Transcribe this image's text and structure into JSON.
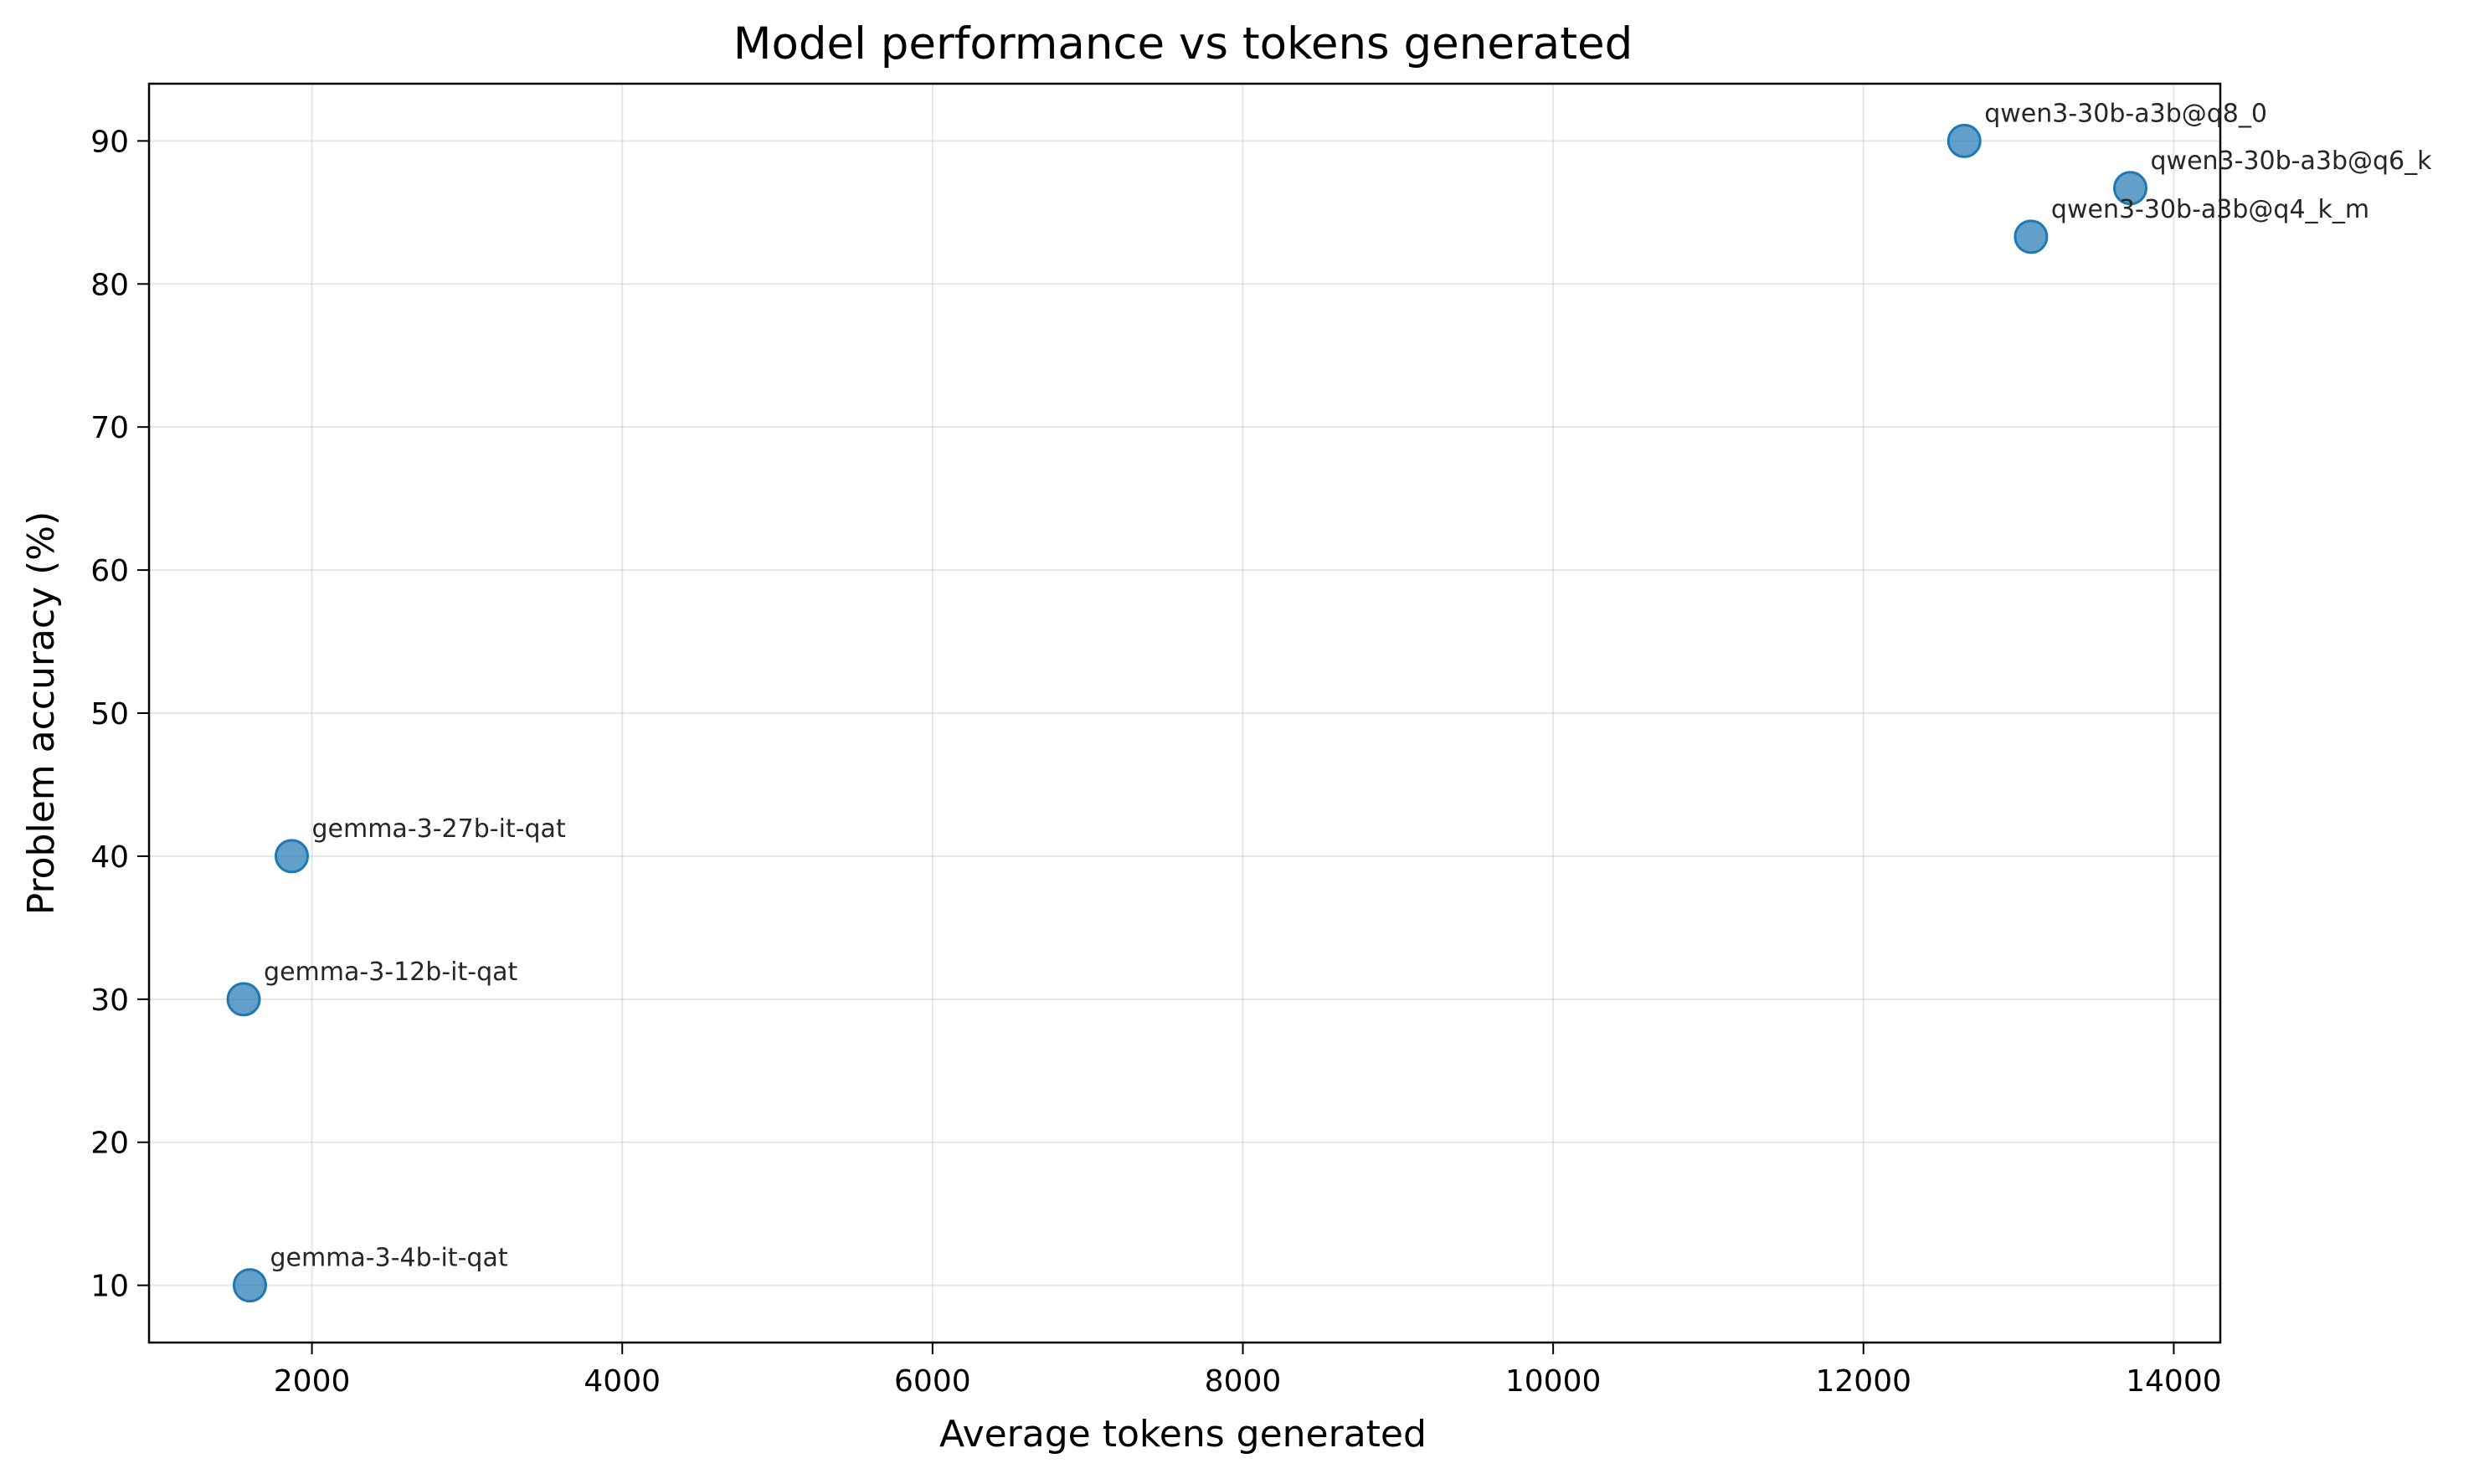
{
  "chart_data": {
    "type": "scatter",
    "title": "Model performance vs tokens generated",
    "xlabel": "Average tokens generated",
    "ylabel": "Problem accuracy (%)",
    "xlim": [
      950,
      14300
    ],
    "ylim": [
      6,
      94
    ],
    "xticks": [
      2000,
      4000,
      6000,
      8000,
      10000,
      12000,
      14000
    ],
    "yticks": [
      10,
      20,
      30,
      40,
      50,
      60,
      70,
      80,
      90
    ],
    "grid": true,
    "marker_color": "#1f77b4",
    "points": [
      {
        "label": "qwen3-30b-a3b@q8_0",
        "x": 12650,
        "y": 90
      },
      {
        "label": "qwen3-30b-a3b@q6_k",
        "x": 13720,
        "y": 86.7
      },
      {
        "label": "qwen3-30b-a3b@q4_k_m",
        "x": 13080,
        "y": 83.3
      },
      {
        "label": "gemma-3-27b-it-qat",
        "x": 1870,
        "y": 40
      },
      {
        "label": "gemma-3-12b-it-qat",
        "x": 1560,
        "y": 30
      },
      {
        "label": "gemma-3-4b-it-qat",
        "x": 1600,
        "y": 10
      }
    ]
  }
}
